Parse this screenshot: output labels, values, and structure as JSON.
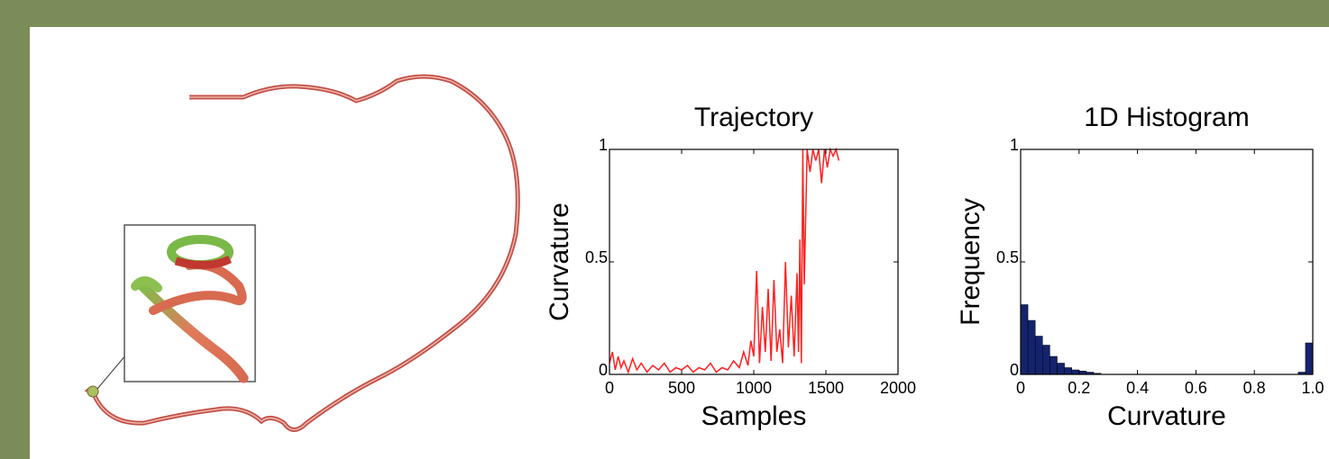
{
  "chart_data": [
    {
      "type": "line",
      "title": "Trajectory",
      "xlabel": "Samples",
      "ylabel": "Curvature",
      "x": [
        0,
        20,
        40,
        60,
        80,
        100,
        130,
        160,
        190,
        220,
        260,
        300,
        340,
        380,
        420,
        460,
        500,
        540,
        580,
        620,
        660,
        700,
        740,
        780,
        820,
        860,
        900,
        930,
        960,
        980,
        1000,
        1020,
        1040,
        1060,
        1080,
        1100,
        1120,
        1140,
        1160,
        1180,
        1200,
        1220,
        1240,
        1260,
        1280,
        1300,
        1310,
        1320,
        1330,
        1340,
        1350,
        1370,
        1390,
        1410,
        1430,
        1450,
        1470,
        1490,
        1510,
        1530,
        1550,
        1570,
        1590
      ],
      "values": [
        0.05,
        0.1,
        0.02,
        0.08,
        0.03,
        0.06,
        0.01,
        0.07,
        0.02,
        0.05,
        0.01,
        0.04,
        0.02,
        0.05,
        0.01,
        0.03,
        0.02,
        0.04,
        0.01,
        0.03,
        0.02,
        0.05,
        0.01,
        0.03,
        0.02,
        0.06,
        0.03,
        0.1,
        0.04,
        0.15,
        0.08,
        0.46,
        0.05,
        0.3,
        0.1,
        0.38,
        0.06,
        0.42,
        0.1,
        0.2,
        0.05,
        0.5,
        0.12,
        0.35,
        0.08,
        0.45,
        0.1,
        0.6,
        0.05,
        1,
        0.4,
        1,
        0.9,
        1,
        0.95,
        1,
        0.85,
        1,
        0.92,
        1,
        0.97,
        1,
        0.95
      ],
      "color": "#ff2020",
      "xlim": [
        0,
        2000
      ],
      "xticks": [
        0,
        500,
        1000,
        1500,
        2000
      ],
      "ylim": [
        0,
        1
      ],
      "yticks": [
        0,
        0.5,
        1
      ]
    },
    {
      "type": "histogram",
      "title": "1D Histogram",
      "xlabel": "Curvature",
      "ylabel": "Frequency",
      "bins": [
        0,
        0.025,
        0.05,
        0.075,
        0.1,
        0.125,
        0.15,
        0.175,
        0.2,
        0.225,
        0.25,
        0.275,
        0.3,
        0.325,
        0.35,
        0.375,
        0.4,
        0.425,
        0.45,
        0.475,
        0.5,
        0.525,
        0.55,
        0.575,
        0.6,
        0.625,
        0.65,
        0.675,
        0.7,
        0.725,
        0.75,
        0.775,
        0.8,
        0.825,
        0.85,
        0.875,
        0.9,
        0.925,
        0.95,
        0.975,
        1
      ],
      "values": [
        0.31,
        0.24,
        0.17,
        0.13,
        0.08,
        0.05,
        0.03,
        0.02,
        0.015,
        0.01,
        0.005,
        0,
        0,
        0,
        0,
        0,
        0,
        0,
        0,
        0,
        0,
        0,
        0,
        0,
        0,
        0,
        0,
        0,
        0,
        0,
        0,
        0,
        0,
        0,
        0,
        0,
        0,
        0,
        0.01,
        0.14
      ],
      "color": "#14236e",
      "xlim": [
        0,
        1
      ],
      "xticks": [
        0,
        0.2,
        0.4,
        0.6,
        0.8,
        {
          "value": 1,
          "label": "1.0"
        }
      ],
      "ylim": [
        0,
        1
      ],
      "yticks": [
        0,
        0.5,
        1
      ]
    }
  ]
}
